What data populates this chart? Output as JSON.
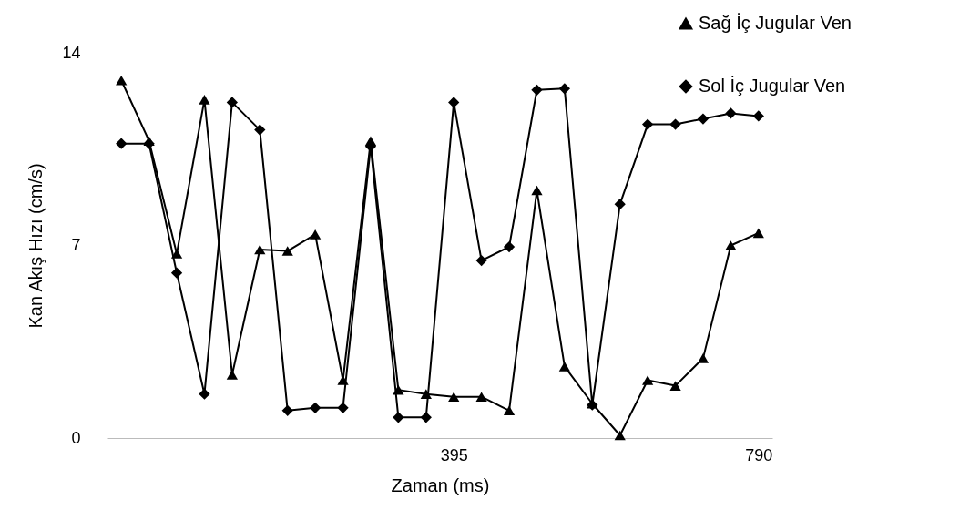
{
  "chart_data": {
    "type": "line",
    "xlabel": "Zaman (ms)",
    "ylabel": "Kan Akış Hızı (cm/s)",
    "categories": [
      null,
      null,
      null,
      null,
      null,
      null,
      null,
      null,
      null,
      null,
      null,
      null,
      "395",
      null,
      null,
      null,
      null,
      null,
      null,
      null,
      null,
      null,
      null,
      "790"
    ],
    "ylim": [
      0,
      14
    ],
    "yticks": [
      0,
      7,
      14
    ],
    "grid": false,
    "legend": "top right",
    "series": [
      {
        "name": "Sağ İç Jugular Ven",
        "color": "#000000",
        "marker": "triangle",
        "values": [
          13.0,
          10.8,
          6.7,
          12.3,
          2.3,
          6.85,
          6.8,
          7.4,
          2.1,
          10.8,
          1.75,
          1.6,
          1.5,
          1.5,
          1.0,
          9.0,
          2.6,
          1.25,
          0.1,
          2.1,
          1.9,
          2.9,
          7.0,
          7.45
        ]
      },
      {
        "name": "Sol İç Jugular Ven",
        "color": "#000000",
        "marker": "diamond",
        "values": [
          10.7,
          10.7,
          6.0,
          1.6,
          12.2,
          11.2,
          1.0,
          1.1,
          1.1,
          10.6,
          0.75,
          0.75,
          12.2,
          6.45,
          6.95,
          12.65,
          12.7,
          1.2,
          8.5,
          11.4,
          11.4,
          11.6,
          11.8,
          11.7
        ]
      }
    ]
  }
}
